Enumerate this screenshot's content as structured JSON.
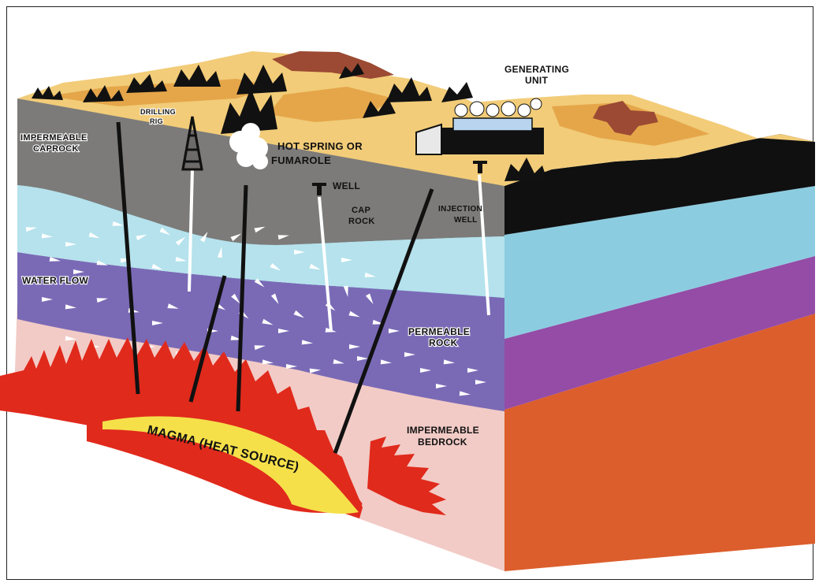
{
  "labels": {
    "generating_unit_1": "GENERATING",
    "generating_unit_2": "UNIT",
    "drilling_rig_1": "DRILLING",
    "drilling_rig_2": "RIG",
    "caprock_1": "IMPERMEABLE",
    "caprock_2": "CAPROCK",
    "hot_spring_1": "HOT SPRING OR",
    "hot_spring_2": "FUMAROLE",
    "well": "WELL",
    "cap_rock_1": "CAP",
    "cap_rock_2": "ROCK",
    "injection_well_1": "INJECTION",
    "injection_well_2": "WELL",
    "water_flow": "WATER FLOW",
    "permeable_rock_1": "PERMEABLE",
    "permeable_rock_2": "ROCK",
    "bedrock_1": "IMPERMEABLE",
    "bedrock_2": "BEDROCK",
    "magma": "MAGMA (HEAT SOURCE)"
  },
  "colors": {
    "surface_sand": "#f2cc78",
    "surface_orange": "#e5a64a",
    "surface_brown": "#9c4a33",
    "caprock_gray": "#7c7b7a",
    "aquifer_blue": "#a9dde9",
    "permeable_purple": "#7a6ab6",
    "bedrock_pink": "#f2cbc6",
    "magma_red": "#e02a1c",
    "magma_yellow": "#f5e04a",
    "side_black": "#101010",
    "side_blue": "#8ccce0",
    "side_purple": "#944ca6",
    "side_orange": "#dc5e2c"
  }
}
